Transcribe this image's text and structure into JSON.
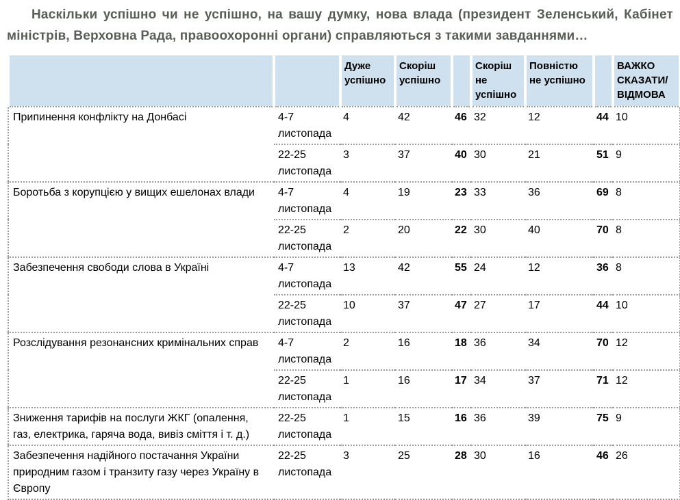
{
  "page": {
    "title": "Наскільки успішно чи не успішно, на вашу думку, нова влада (президент Зеленський, Кабінет міністрів, Верховна Рада, правоохоронні органи) справляються з такими завданнями…"
  },
  "colors": {
    "header_bg": "#cfe0ee",
    "title_text": "#585d56",
    "body_text": "#000000",
    "border_dotted": "#9b9b9b",
    "header_separator": "#ffffff"
  },
  "table": {
    "headers": [
      "",
      "",
      "Дуже успішно",
      "Скоріш успішно",
      "",
      "Скоріш не успішно",
      "Повністю не успішно",
      "",
      "ВАЖКО СКАЗАТИ/ ВІДМОВА"
    ],
    "value_column_meaning": [
      "дуже успішно",
      "скоріш успішно",
      "разом успішно (жирний)",
      "скоріш не успішно",
      "повністю не успішно",
      "разом не успішно (жирний)",
      "важко сказати / відмова"
    ],
    "rows": [
      {
        "task": "Припинення конфлікту на Донбасі",
        "waves": [
          {
            "date": "4-7 листопада",
            "values": [
              4,
              42,
              46,
              32,
              12,
              44,
              10
            ]
          },
          {
            "date": "22-25 листопада",
            "values": [
              3,
              37,
              40,
              30,
              21,
              51,
              9
            ]
          }
        ]
      },
      {
        "task": "Боротьба з корупцією у вищих ешелонах влади",
        "waves": [
          {
            "date": "4-7 листопада",
            "values": [
              4,
              19,
              23,
              33,
              36,
              69,
              8
            ]
          },
          {
            "date": "22-25 листопада",
            "values": [
              2,
              20,
              22,
              30,
              40,
              70,
              8
            ]
          }
        ]
      },
      {
        "task": "Забезпечення свободи слова в Україні",
        "waves": [
          {
            "date": "4-7 листопада",
            "values": [
              13,
              42,
              55,
              24,
              12,
              36,
              8
            ]
          },
          {
            "date": "22-25 листопада",
            "values": [
              10,
              37,
              47,
              27,
              17,
              44,
              10
            ]
          }
        ]
      },
      {
        "task": "Розслідування резонансних кримінальних справ",
        "waves": [
          {
            "date": "4-7 листопада",
            "values": [
              2,
              16,
              18,
              36,
              34,
              70,
              12
            ]
          },
          {
            "date": "22-25 листопада",
            "values": [
              1,
              16,
              17,
              34,
              37,
              71,
              12
            ]
          }
        ]
      },
      {
        "task": "Зниження тарифів на послуги ЖКГ (опалення, газ, електрика, гаряча вода, вивіз сміття і т. д.)",
        "waves": [
          {
            "date": "22-25 листопада",
            "values": [
              1,
              15,
              16,
              36,
              39,
              75,
              9
            ]
          }
        ]
      },
      {
        "task": "Забезпечення надійного постачання України природним газом і транзиту газу через Україну в Європу",
        "waves": [
          {
            "date": "22-25 листопада",
            "values": [
              3,
              25,
              28,
              30,
              16,
              46,
              26
            ]
          }
        ]
      }
    ]
  }
}
